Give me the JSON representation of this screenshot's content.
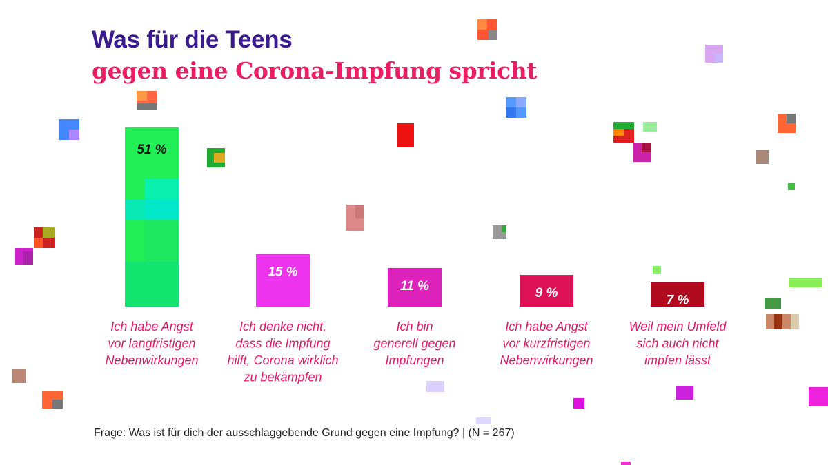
{
  "title": "Was für die Teens",
  "subtitle": "gegen eine Corona-Impfung spricht",
  "note": "Frage: Was ist für dich der ausschlaggebende Grund gegen eine Impfung? | (N = 267)",
  "colors": {
    "title": "#3b1a8f",
    "subtitle": "#e91e63",
    "label": "#e0196a"
  },
  "chart_data": {
    "type": "bar",
    "categories": [
      "Ich habe Angst vor langfristigen Nebenwirkungen",
      "Ich denke nicht, dass die Impfung hilft, Corona wirklich zu bekämpfen",
      "Ich bin generell gegen Impfungen",
      "Ich habe Angst vor kurzfristigen Nebenwirkungen",
      "Weil mein Umfeld sich auch nicht impfen lässt"
    ],
    "category_lines": [
      [
        "Ich habe Angst",
        "vor langfristigen",
        "Nebenwirkungen"
      ],
      [
        "Ich denke nicht,",
        "dass die Impfung",
        "hilft, Corona wirklich",
        "zu bekämpfen"
      ],
      [
        "Ich bin",
        "generell gegen",
        "Impfungen"
      ],
      [
        "Ich habe Angst",
        "vor kurzfristigen",
        "Nebenwirkungen"
      ],
      [
        "Weil mein Umfeld",
        "sich auch nicht",
        "impfen lässt"
      ]
    ],
    "values": [
      51,
      15,
      11,
      9,
      7
    ],
    "value_labels": [
      "51 %",
      "15 %",
      "11 %",
      "9 %",
      "7 %"
    ],
    "bar_colors": [
      "#22ee55",
      "#ee33ee",
      "#dd22bb",
      "#dd1155",
      "#b00a1e"
    ],
    "value_label_colors": [
      "#111111",
      "#ffffff",
      "#ffffff",
      "#ffffff",
      "#ffffff"
    ],
    "title": "Was für die Teens gegen eine Corona-Impfung spricht",
    "xlabel": "",
    "ylabel": "",
    "ylim": [
      0,
      51
    ],
    "grid": false,
    "legend": "none"
  }
}
